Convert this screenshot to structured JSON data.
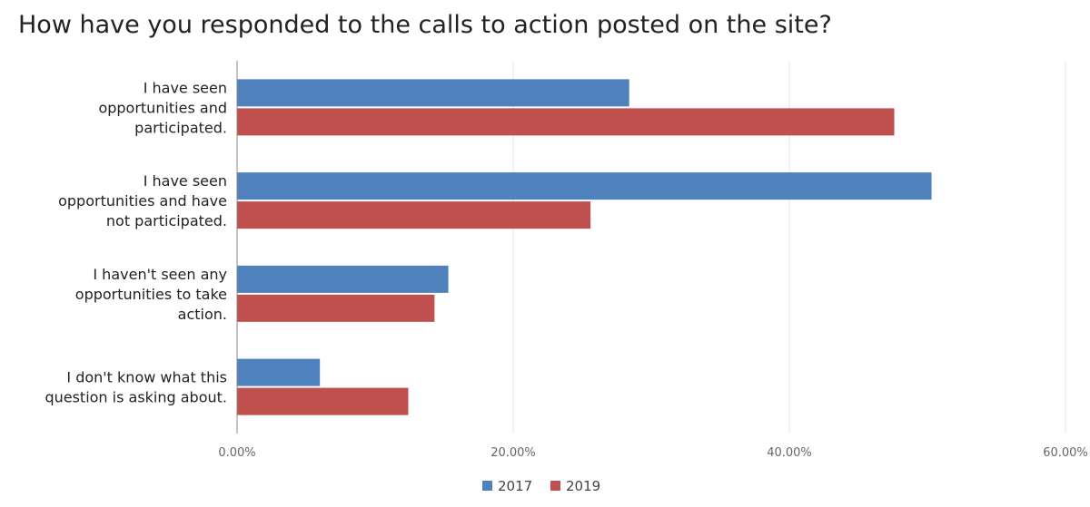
{
  "chart_data": {
    "type": "bar",
    "orientation": "horizontal",
    "title": "How have you responded to the calls to action posted on the site?",
    "categories": [
      [
        "I have seen",
        "opportunities and",
        "participated."
      ],
      [
        "I have seen",
        "opportunities and have",
        "not participated."
      ],
      [
        "I haven't seen any",
        "opportunities to take",
        "action."
      ],
      [
        "I don't know what this",
        "question is asking about."
      ]
    ],
    "series": [
      {
        "name": "2017",
        "color": "#4f81bd",
        "values": [
          28.4,
          50.3,
          15.3,
          6.0
        ]
      },
      {
        "name": "2019",
        "color": "#c0504d",
        "values": [
          47.6,
          25.6,
          14.3,
          12.4
        ]
      }
    ],
    "xlim": [
      0,
      60
    ],
    "xticks": [
      "0.00%",
      "20.00%",
      "40.00%",
      "60.00%"
    ],
    "xtick_values": [
      0,
      20,
      40,
      60
    ],
    "grid": true,
    "legend_position": "bottom"
  }
}
